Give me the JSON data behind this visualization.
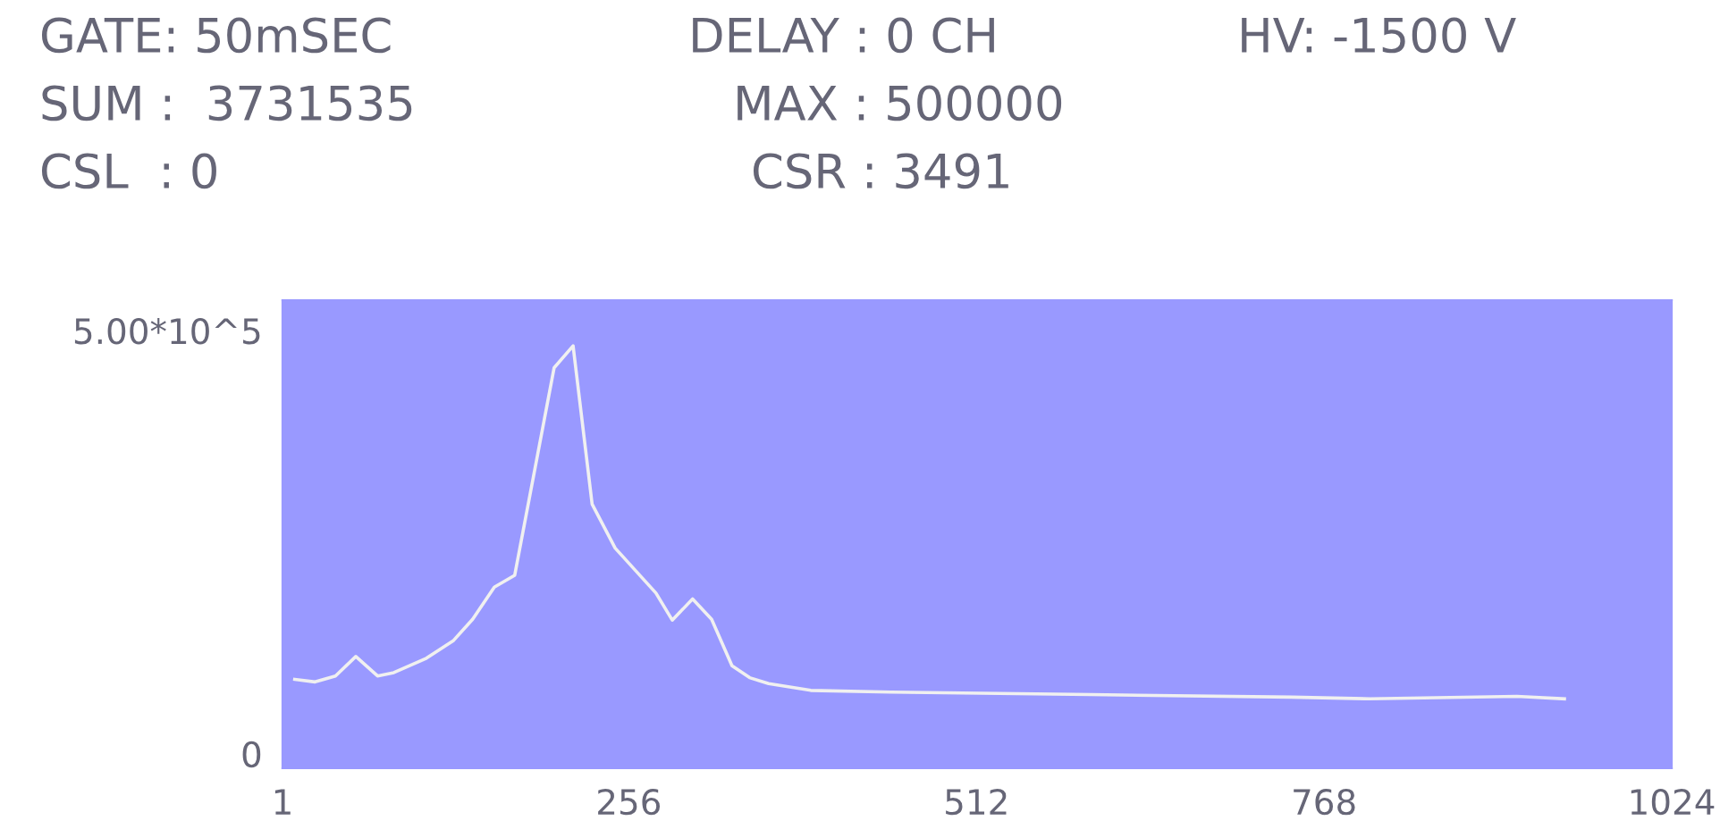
{
  "chart_data": {
    "type": "line",
    "annotations": [
      "GATE: 50mSEC",
      "DELAY : 0 CH",
      "HV: -1500 V",
      "SUM :  3731535",
      "MAX : 500000",
      "CSL  : 0",
      "CSR : 3491"
    ],
    "x": [
      10,
      25,
      40,
      55,
      71,
      83,
      107,
      127,
      141,
      157,
      172,
      201,
      215,
      229,
      246,
      276,
      288,
      303,
      317,
      332,
      345,
      359,
      390,
      449,
      596,
      744,
      802,
      910,
      945
    ],
    "series": [
      {
        "color": "#f0f0f0",
        "values": [
          88000,
          85000,
          92000,
          115000,
          92000,
          96000,
          113000,
          134000,
          159000,
          197000,
          211000,
          456000,
          482000,
          295000,
          243000,
          190000,
          158000,
          183000,
          159000,
          104000,
          90000,
          83000,
          75000,
          73000,
          70000,
          67000,
          65000,
          68000,
          65000
        ]
      }
    ],
    "xlim": [
      1,
      1024
    ],
    "xticks": [
      1,
      256,
      512,
      768,
      1024
    ],
    "ylim": [
      -17000,
      536000
    ],
    "yticks": [
      0,
      {
        "value": 500000,
        "label": "5.00*10^5"
      }
    ],
    "grid": false,
    "legend": false,
    "marker": "none",
    "line_style": "solid"
  }
}
